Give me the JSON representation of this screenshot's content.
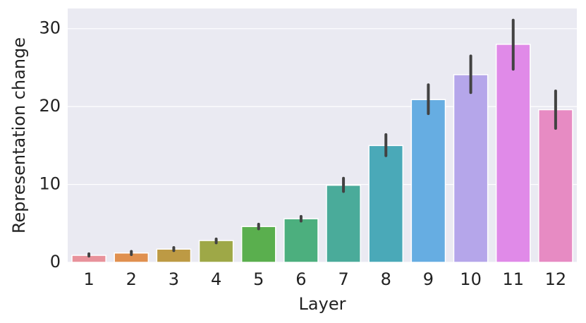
{
  "chart_data": {
    "type": "bar",
    "x_label": "Layer",
    "y_label": "Representation change",
    "categories": [
      "1",
      "2",
      "3",
      "4",
      "5",
      "6",
      "7",
      "8",
      "9",
      "10",
      "11",
      "12"
    ],
    "values": [
      0.9,
      1.2,
      1.7,
      2.8,
      4.6,
      5.6,
      9.9,
      15.0,
      20.9,
      24.1,
      28.0,
      19.6
    ],
    "error_low": [
      0.8,
      1.0,
      1.5,
      2.5,
      4.3,
      5.3,
      9.1,
      13.7,
      19.1,
      21.8,
      24.8,
      17.2
    ],
    "error_high": [
      1.1,
      1.4,
      1.9,
      3.0,
      4.9,
      5.9,
      10.8,
      16.4,
      22.8,
      26.5,
      31.1,
      22.0
    ],
    "colors": [
      "#e8929b",
      "#e0904f",
      "#bd9a44",
      "#9ea847",
      "#5aaf4e",
      "#4caf7e",
      "#4aab9a",
      "#4aa9b8",
      "#66ade2",
      "#b5a6ea",
      "#e08ae8",
      "#e78bc3"
    ],
    "ylim": [
      0,
      32.6
    ],
    "yticks": [
      0,
      10,
      20,
      30
    ],
    "grid": true
  }
}
